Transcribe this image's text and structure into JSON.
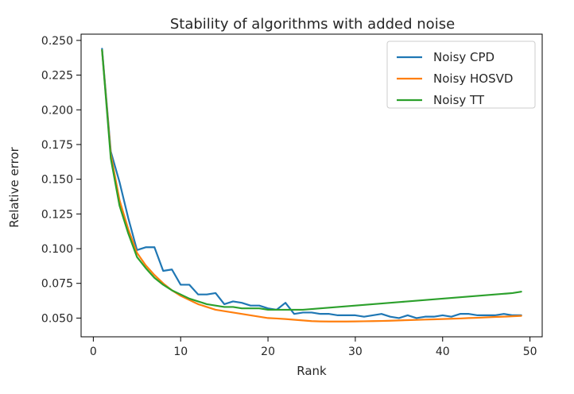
{
  "chart_data": {
    "type": "line",
    "title": "Stability of algorithms with added noise",
    "xlabel": "Rank",
    "ylabel": "Relative error",
    "xlim": [
      -1.4,
      51.4
    ],
    "ylim": [
      0.0365,
      0.2545
    ],
    "xticks": [
      0,
      10,
      20,
      30,
      40,
      50
    ],
    "yticks": [
      0.05,
      0.075,
      0.1,
      0.125,
      0.15,
      0.175,
      0.2,
      0.225,
      0.25
    ],
    "xtick_labels": [
      "0",
      "10",
      "20",
      "30",
      "40",
      "50"
    ],
    "ytick_labels": [
      "0.050",
      "0.075",
      "0.100",
      "0.125",
      "0.150",
      "0.175",
      "0.200",
      "0.225",
      "0.250"
    ],
    "grid": false,
    "legend": "top-right",
    "x": [
      1,
      2,
      3,
      4,
      5,
      6,
      7,
      8,
      9,
      10,
      11,
      12,
      13,
      14,
      15,
      16,
      17,
      18,
      19,
      20,
      21,
      22,
      23,
      24,
      25,
      26,
      27,
      28,
      29,
      30,
      31,
      32,
      33,
      34,
      35,
      36,
      37,
      38,
      39,
      40,
      41,
      42,
      43,
      44,
      45,
      46,
      47,
      48,
      49
    ],
    "series": [
      {
        "name": "Noisy CPD",
        "color": "#1f77b4",
        "values": [
          0.244,
          0.17,
          0.148,
          0.122,
          0.099,
          0.101,
          0.101,
          0.084,
          0.085,
          0.074,
          0.074,
          0.067,
          0.067,
          0.068,
          0.06,
          0.062,
          0.061,
          0.059,
          0.059,
          0.057,
          0.056,
          0.061,
          0.053,
          0.054,
          0.054,
          0.053,
          0.053,
          0.052,
          0.052,
          0.052,
          0.051,
          0.052,
          0.053,
          0.051,
          0.05,
          0.052,
          0.05,
          0.051,
          0.051,
          0.052,
          0.051,
          0.053,
          0.053,
          0.052,
          0.052,
          0.052,
          0.053,
          0.052,
          0.052
        ]
      },
      {
        "name": "Noisy HOSVD",
        "color": "#ff7f0e",
        "values": [
          0.243,
          0.168,
          0.135,
          0.114,
          0.097,
          0.088,
          0.081,
          0.075,
          0.07,
          0.066,
          0.063,
          0.06,
          0.058,
          0.056,
          0.055,
          0.054,
          0.053,
          0.052,
          0.051,
          0.05,
          0.0497,
          0.0493,
          0.0488,
          0.0483,
          0.0478,
          0.0476,
          0.0475,
          0.0475,
          0.0475,
          0.0476,
          0.0477,
          0.0478,
          0.0479,
          0.0481,
          0.0483,
          0.0485,
          0.0487,
          0.0489,
          0.0491,
          0.0493,
          0.0495,
          0.0497,
          0.05,
          0.0502,
          0.0505,
          0.0508,
          0.051,
          0.0513,
          0.0516
        ]
      },
      {
        "name": "Noisy TT",
        "color": "#2ca02c",
        "values": [
          0.243,
          0.165,
          0.131,
          0.111,
          0.094,
          0.086,
          0.079,
          0.074,
          0.07,
          0.067,
          0.064,
          0.062,
          0.06,
          0.059,
          0.058,
          0.058,
          0.057,
          0.057,
          0.057,
          0.056,
          0.056,
          0.056,
          0.056,
          0.056,
          0.0565,
          0.057,
          0.0575,
          0.058,
          0.0585,
          0.059,
          0.0595,
          0.06,
          0.0605,
          0.061,
          0.0615,
          0.062,
          0.0625,
          0.063,
          0.0635,
          0.064,
          0.0645,
          0.065,
          0.0655,
          0.066,
          0.0665,
          0.067,
          0.0675,
          0.068,
          0.069
        ]
      }
    ]
  }
}
